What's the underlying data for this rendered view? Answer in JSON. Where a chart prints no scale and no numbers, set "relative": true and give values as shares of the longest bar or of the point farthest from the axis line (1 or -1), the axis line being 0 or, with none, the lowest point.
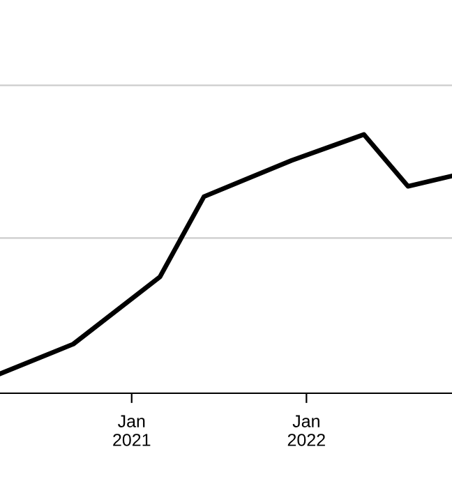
{
  "chart_data": {
    "type": "line",
    "relative": true,
    "x": [
      "2020-04",
      "2020-09",
      "2021-03",
      "2021-06",
      "2021-12",
      "2022-05",
      "2022-08",
      "2022-11"
    ],
    "series": [
      {
        "color": "#000000",
        "values": [
          0.075,
          0.19,
          0.45,
          0.76,
          0.9,
          1,
          0.8,
          0.84
        ]
      }
    ],
    "xlim": [
      "2020-04",
      "2022-11"
    ],
    "xticks": [
      {
        "value": "2021-01",
        "label": "Jan\n2021"
      },
      {
        "value": "2022-01",
        "label": "Jan\n2022"
      }
    ],
    "ref_lines": [
      {
        "axis": "y",
        "value": 0.6,
        "color": "#cccccc"
      },
      {
        "axis": "y",
        "value": 1.19,
        "color": "#cccccc"
      }
    ],
    "legend": false,
    "marker": "none",
    "line_style": "solid"
  }
}
